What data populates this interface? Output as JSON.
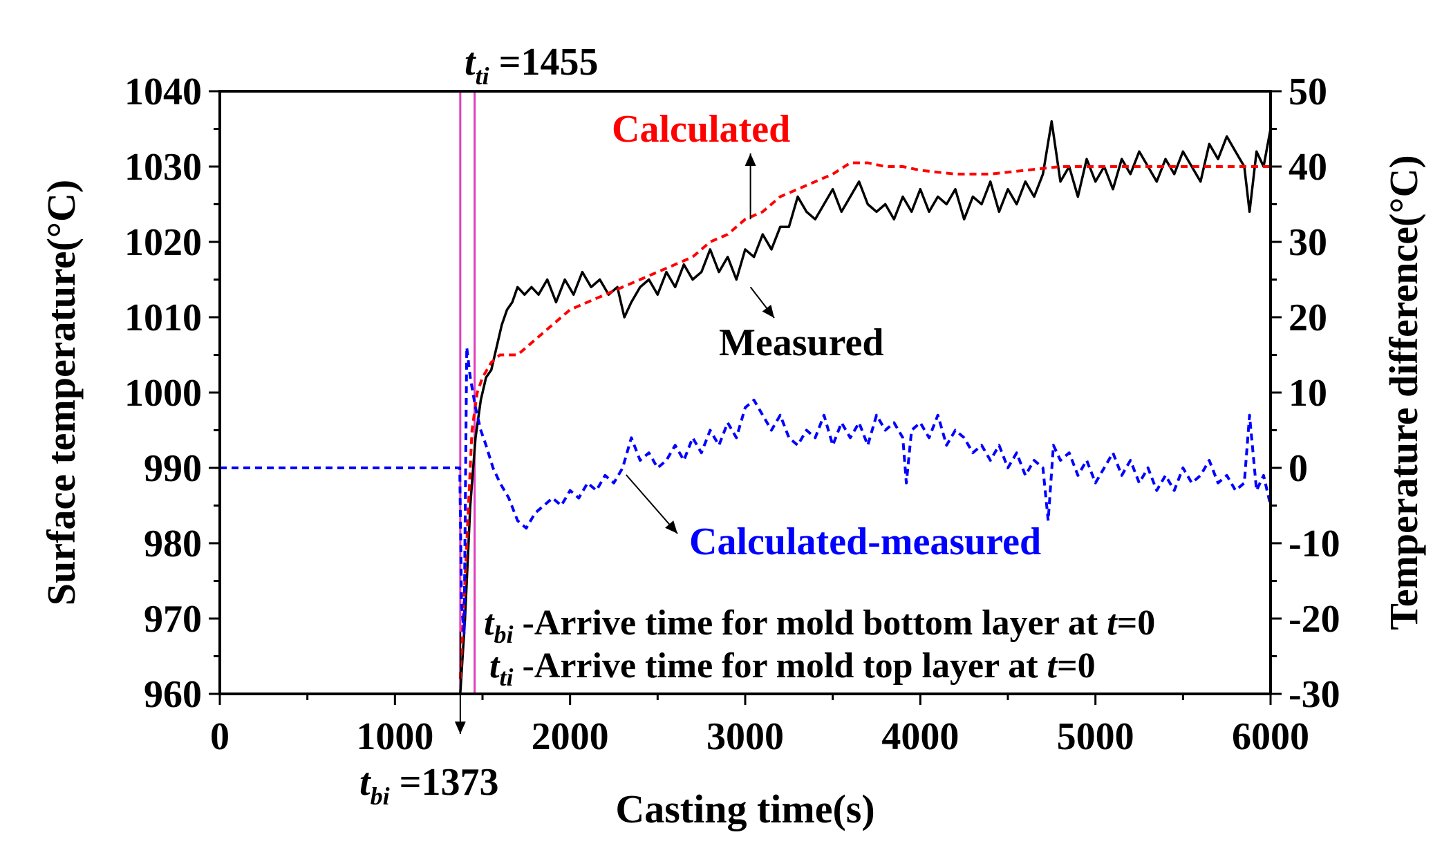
{
  "chart_data": {
    "type": "line",
    "xlabel": "Casting time(s)",
    "ylabel_left": "Surface temperature(°C)",
    "ylabel_right": "Temperature difference(°C)",
    "colors": {
      "measured": "#000000",
      "calculated": "#ff0000",
      "difference": "#0000ff",
      "markers": "#e040c0"
    },
    "xlim": [
      0,
      6000
    ],
    "ylim_left": [
      960,
      1040
    ],
    "ylim_right": [
      -30,
      50
    ],
    "x_ticks": [
      "0",
      "1000",
      "2000",
      "3000",
      "4000",
      "5000",
      "6000"
    ],
    "y_left_ticks": [
      "960",
      "970",
      "980",
      "990",
      "1000",
      "1010",
      "1020",
      "1030",
      "1040"
    ],
    "y_right_ticks": [
      "-30",
      "-20",
      "-10",
      "0",
      "10",
      "20",
      "30",
      "40",
      "50"
    ],
    "series": [
      {
        "name": "Measured",
        "axis": "left",
        "style": "solid",
        "points": [
          [
            1373,
            960
          ],
          [
            1400,
            970
          ],
          [
            1430,
            985
          ],
          [
            1460,
            994
          ],
          [
            1490,
            999
          ],
          [
            1520,
            1002
          ],
          [
            1550,
            1003
          ],
          [
            1580,
            1006
          ],
          [
            1610,
            1009
          ],
          [
            1640,
            1011
          ],
          [
            1670,
            1012
          ],
          [
            1700,
            1014
          ],
          [
            1740,
            1013
          ],
          [
            1780,
            1014
          ],
          [
            1820,
            1013
          ],
          [
            1870,
            1015
          ],
          [
            1920,
            1012
          ],
          [
            1970,
            1015
          ],
          [
            2020,
            1013
          ],
          [
            2070,
            1016
          ],
          [
            2120,
            1014
          ],
          [
            2170,
            1015
          ],
          [
            2220,
            1013
          ],
          [
            2270,
            1014
          ],
          [
            2310,
            1010
          ],
          [
            2350,
            1012
          ],
          [
            2400,
            1014
          ],
          [
            2450,
            1015
          ],
          [
            2500,
            1013
          ],
          [
            2550,
            1016
          ],
          [
            2600,
            1014
          ],
          [
            2650,
            1017
          ],
          [
            2700,
            1015
          ],
          [
            2750,
            1016
          ],
          [
            2800,
            1019
          ],
          [
            2850,
            1016
          ],
          [
            2900,
            1018
          ],
          [
            2950,
            1015
          ],
          [
            3000,
            1019
          ],
          [
            3050,
            1018
          ],
          [
            3100,
            1021
          ],
          [
            3150,
            1019
          ],
          [
            3200,
            1022
          ],
          [
            3250,
            1022
          ],
          [
            3300,
            1026
          ],
          [
            3350,
            1024
          ],
          [
            3400,
            1023
          ],
          [
            3450,
            1025
          ],
          [
            3500,
            1027
          ],
          [
            3550,
            1024
          ],
          [
            3600,
            1026
          ],
          [
            3650,
            1028
          ],
          [
            3700,
            1025
          ],
          [
            3750,
            1024
          ],
          [
            3800,
            1025
          ],
          [
            3850,
            1023
          ],
          [
            3900,
            1026
          ],
          [
            3950,
            1024
          ],
          [
            4000,
            1027
          ],
          [
            4050,
            1024
          ],
          [
            4100,
            1026
          ],
          [
            4150,
            1025
          ],
          [
            4200,
            1027
          ],
          [
            4250,
            1023
          ],
          [
            4300,
            1026
          ],
          [
            4350,
            1025
          ],
          [
            4400,
            1028
          ],
          [
            4450,
            1024
          ],
          [
            4500,
            1027
          ],
          [
            4550,
            1025
          ],
          [
            4600,
            1028
          ],
          [
            4650,
            1026
          ],
          [
            4700,
            1029
          ],
          [
            4750,
            1036
          ],
          [
            4800,
            1028
          ],
          [
            4850,
            1030
          ],
          [
            4900,
            1026
          ],
          [
            4950,
            1031
          ],
          [
            5000,
            1028
          ],
          [
            5050,
            1030
          ],
          [
            5100,
            1027
          ],
          [
            5150,
            1031
          ],
          [
            5200,
            1029
          ],
          [
            5250,
            1032
          ],
          [
            5300,
            1030
          ],
          [
            5350,
            1028
          ],
          [
            5400,
            1031
          ],
          [
            5450,
            1029
          ],
          [
            5500,
            1032
          ],
          [
            5550,
            1030
          ],
          [
            5600,
            1028
          ],
          [
            5650,
            1033
          ],
          [
            5700,
            1031
          ],
          [
            5750,
            1034
          ],
          [
            5800,
            1032
          ],
          [
            5850,
            1030
          ],
          [
            5880,
            1024
          ],
          [
            5920,
            1032
          ],
          [
            5960,
            1030
          ],
          [
            6000,
            1035
          ]
        ]
      },
      {
        "name": "Calculated",
        "axis": "left",
        "style": "dashed",
        "points": [
          [
            1373,
            962
          ],
          [
            1410,
            980
          ],
          [
            1440,
            995
          ],
          [
            1470,
            1000
          ],
          [
            1500,
            1002
          ],
          [
            1550,
            1004
          ],
          [
            1600,
            1005
          ],
          [
            1700,
            1005
          ],
          [
            1800,
            1007
          ],
          [
            1900,
            1009
          ],
          [
            2000,
            1011
          ],
          [
            2100,
            1012
          ],
          [
            2200,
            1013
          ],
          [
            2300,
            1014
          ],
          [
            2400,
            1015
          ],
          [
            2500,
            1016
          ],
          [
            2600,
            1017
          ],
          [
            2700,
            1018
          ],
          [
            2800,
            1020
          ],
          [
            2900,
            1021
          ],
          [
            3000,
            1023
          ],
          [
            3100,
            1024
          ],
          [
            3200,
            1026
          ],
          [
            3300,
            1027
          ],
          [
            3400,
            1028
          ],
          [
            3500,
            1029
          ],
          [
            3600,
            1030.5
          ],
          [
            3700,
            1030.5
          ],
          [
            3800,
            1030
          ],
          [
            3900,
            1030
          ],
          [
            4000,
            1029.5
          ],
          [
            4200,
            1029
          ],
          [
            4400,
            1029
          ],
          [
            4600,
            1029.5
          ],
          [
            4800,
            1030
          ],
          [
            5000,
            1030
          ],
          [
            5200,
            1030
          ],
          [
            5400,
            1030
          ],
          [
            5600,
            1030
          ],
          [
            5800,
            1030
          ],
          [
            6000,
            1030
          ]
        ]
      },
      {
        "name": "Calculated-measured",
        "axis": "right",
        "style": "dashed",
        "points": [
          [
            0,
            0
          ],
          [
            1370,
            0
          ],
          [
            1380,
            -18
          ],
          [
            1395,
            -22
          ],
          [
            1410,
            16
          ],
          [
            1430,
            12
          ],
          [
            1460,
            8
          ],
          [
            1490,
            5
          ],
          [
            1520,
            3
          ],
          [
            1560,
            0
          ],
          [
            1600,
            -2
          ],
          [
            1650,
            -4
          ],
          [
            1700,
            -7
          ],
          [
            1750,
            -8
          ],
          [
            1800,
            -6
          ],
          [
            1850,
            -5
          ],
          [
            1900,
            -4
          ],
          [
            1950,
            -5
          ],
          [
            2000,
            -3
          ],
          [
            2050,
            -4
          ],
          [
            2100,
            -2
          ],
          [
            2150,
            -3
          ],
          [
            2200,
            -1
          ],
          [
            2250,
            -2
          ],
          [
            2300,
            0
          ],
          [
            2350,
            4
          ],
          [
            2400,
            1
          ],
          [
            2450,
            2
          ],
          [
            2500,
            0
          ],
          [
            2550,
            1
          ],
          [
            2600,
            3
          ],
          [
            2650,
            1
          ],
          [
            2700,
            4
          ],
          [
            2750,
            2
          ],
          [
            2800,
            5
          ],
          [
            2850,
            3
          ],
          [
            2900,
            6
          ],
          [
            2950,
            4
          ],
          [
            3000,
            8
          ],
          [
            3050,
            9
          ],
          [
            3100,
            7
          ],
          [
            3150,
            5
          ],
          [
            3200,
            7
          ],
          [
            3250,
            4
          ],
          [
            3300,
            3
          ],
          [
            3350,
            5
          ],
          [
            3400,
            4
          ],
          [
            3450,
            7
          ],
          [
            3500,
            3
          ],
          [
            3550,
            6
          ],
          [
            3600,
            4
          ],
          [
            3650,
            6
          ],
          [
            3700,
            3
          ],
          [
            3750,
            7
          ],
          [
            3800,
            5
          ],
          [
            3850,
            6
          ],
          [
            3900,
            4
          ],
          [
            3920,
            -2
          ],
          [
            3950,
            5
          ],
          [
            4000,
            6
          ],
          [
            4050,
            4
          ],
          [
            4100,
            7
          ],
          [
            4150,
            3
          ],
          [
            4200,
            5
          ],
          [
            4250,
            4
          ],
          [
            4300,
            2
          ],
          [
            4350,
            3
          ],
          [
            4400,
            1
          ],
          [
            4450,
            3
          ],
          [
            4500,
            0
          ],
          [
            4550,
            2
          ],
          [
            4600,
            -1
          ],
          [
            4650,
            1
          ],
          [
            4700,
            0
          ],
          [
            4730,
            -7
          ],
          [
            4760,
            3
          ],
          [
            4800,
            1
          ],
          [
            4850,
            2
          ],
          [
            4900,
            -1
          ],
          [
            4950,
            1
          ],
          [
            5000,
            -2
          ],
          [
            5050,
            0
          ],
          [
            5100,
            2
          ],
          [
            5150,
            -1
          ],
          [
            5200,
            1
          ],
          [
            5250,
            -2
          ],
          [
            5300,
            0
          ],
          [
            5350,
            -3
          ],
          [
            5400,
            -1
          ],
          [
            5450,
            -3
          ],
          [
            5500,
            0
          ],
          [
            5550,
            -2
          ],
          [
            5600,
            -1
          ],
          [
            5650,
            1
          ],
          [
            5700,
            -2
          ],
          [
            5750,
            -1
          ],
          [
            5800,
            -3
          ],
          [
            5850,
            -2
          ],
          [
            5880,
            7
          ],
          [
            5920,
            -3
          ],
          [
            5960,
            -1
          ],
          [
            6000,
            -5
          ]
        ]
      }
    ],
    "markers": [
      {
        "name": "t_bi",
        "x": 1373
      },
      {
        "name": "t_ti",
        "x": 1455
      }
    ],
    "arrow_targets": {
      "calculated_label": [
        3030,
        1023
      ],
      "measured_label": [
        3030,
        1014
      ],
      "difference_label": [
        2320,
        0
      ],
      "tbi_label": [
        1373,
        960
      ]
    },
    "annotations": {
      "calculated": "Calculated",
      "measured": "Measured",
      "difference": "Calculated-measured",
      "tti_top": {
        "t": "t",
        "sub": "ti",
        "rest": " =1455"
      },
      "tbi_bottom": {
        "t": "t",
        "sub": "bi",
        "rest": " =1373"
      },
      "legend_bi": {
        "t": "t",
        "sub": "bi",
        "rest": " -Arrive time for mold bottom layer at ",
        "tvar": "t",
        "end": "=0"
      },
      "legend_ti": {
        "t": "t",
        "sub": "ti",
        "rest": " -Arrive time for mold top layer at ",
        "tvar": "t",
        "end": "=0"
      }
    }
  }
}
